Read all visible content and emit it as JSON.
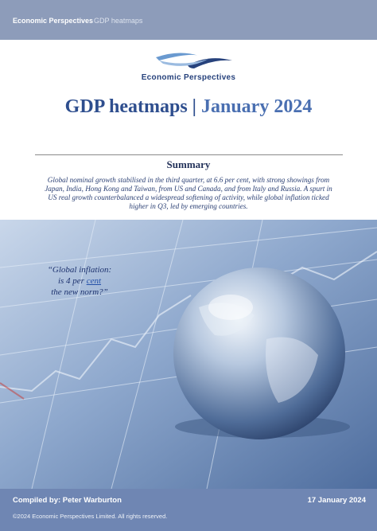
{
  "header": {
    "brand": "Economic Perspectives",
    "section": "GDP heatmaps"
  },
  "logo": {
    "text": "Economic Perspectives"
  },
  "title": {
    "main": "GDP heatmaps | ",
    "date": "January 2024"
  },
  "summary": {
    "heading": "Summary",
    "text": "Global nominal growth stabilised in the third quarter, at 6.6 per cent, with strong showings from Japan, India, Hong Kong and Taiwan, from US and Canada, and from Italy and Russia. A spurt in US real growth counterbalanced a widespread softening of activity, while global inflation ticked higher in Q3, led by emerging countries."
  },
  "quote": {
    "line1": "“Global inflation:",
    "line2": "is 4 per ",
    "line2_link": "cent",
    "line3": "the new norm?”"
  },
  "footer": {
    "compiled": "Compiled by: Peter Warburton",
    "date": "17 January 2024",
    "copyright": "©2024 Economic Perspectives Limited.  All rights reserved."
  }
}
